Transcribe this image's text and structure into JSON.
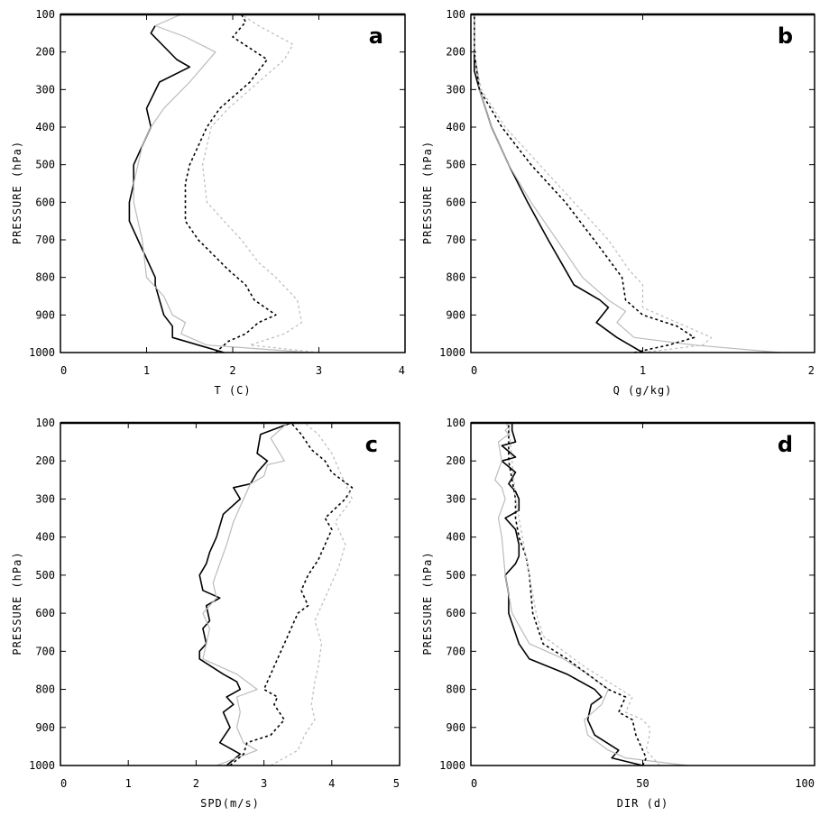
{
  "chart_data": [
    {
      "type": "line",
      "panel_label": "a",
      "xlabel": "T (C)",
      "ylabel": "PRESSURE (hPa)",
      "xlim": [
        0,
        4
      ],
      "ylim": [
        1000,
        100
      ],
      "x_ticks": [
        "0",
        "1",
        "2",
        "3",
        "4"
      ],
      "y_ticks": [
        "100",
        "200",
        "300",
        "400",
        "500",
        "600",
        "700",
        "800",
        "900",
        "1000"
      ],
      "series": [
        {
          "color": "#000000",
          "dash": "solid",
          "width": 1.6,
          "x": [
            1.9,
            1.6,
            1.3,
            1.3,
            1.2,
            1.15,
            1.1,
            1.1,
            0.9,
            0.8,
            0.8,
            0.85,
            0.85,
            0.95,
            1.05,
            1.0,
            1.15,
            1.5,
            1.35,
            1.05,
            1.1
          ],
          "y": [
            1000,
            980,
            960,
            930,
            900,
            860,
            820,
            800,
            700,
            650,
            600,
            550,
            500,
            450,
            400,
            350,
            280,
            240,
            220,
            150,
            130
          ]
        },
        {
          "color": "#bbbbbb",
          "dash": "solid",
          "width": 1.2,
          "x": [
            2.9,
            1.7,
            1.4,
            1.45,
            1.3,
            1.2,
            1.0,
            0.95,
            0.85,
            0.85,
            0.9,
            0.95,
            1.05,
            1.2,
            1.5,
            1.8,
            1.45,
            1.1,
            1.4
          ],
          "y": [
            1000,
            980,
            950,
            920,
            900,
            850,
            800,
            700,
            600,
            550,
            500,
            450,
            400,
            350,
            280,
            200,
            160,
            130,
            100
          ]
        },
        {
          "color": "#000000",
          "dash": "dotted",
          "width": 1.6,
          "x": [
            1.8,
            1.95,
            2.15,
            2.3,
            2.5,
            2.25,
            2.15,
            1.95,
            1.6,
            1.45,
            1.45,
            1.45,
            1.5,
            1.7,
            1.85,
            2.2,
            2.4,
            2.0,
            2.15,
            2.1
          ],
          "y": [
            1000,
            970,
            950,
            920,
            900,
            860,
            820,
            780,
            700,
            650,
            600,
            550,
            500,
            400,
            350,
            280,
            220,
            160,
            120,
            100
          ]
        },
        {
          "color": "#bbbbbb",
          "dash": "dotted",
          "width": 1.2,
          "x": [
            3.0,
            2.2,
            2.6,
            2.8,
            2.75,
            2.5,
            2.3,
            2.1,
            1.9,
            1.7,
            1.65,
            1.75,
            1.95,
            2.2,
            2.6,
            2.7,
            2.3,
            2.1
          ],
          "y": [
            1000,
            980,
            950,
            920,
            860,
            800,
            760,
            700,
            650,
            600,
            500,
            400,
            350,
            300,
            220,
            180,
            130,
            100
          ]
        }
      ]
    },
    {
      "type": "line",
      "panel_label": "b",
      "xlabel": "Q (g/kg)",
      "ylabel": "PRESSURE (hPa)",
      "xlim": [
        0,
        2
      ],
      "ylim": [
        1000,
        100
      ],
      "x_ticks": [
        "0",
        "1",
        "2"
      ],
      "y_ticks": [
        "100",
        "200",
        "300",
        "400",
        "500",
        "600",
        "700",
        "800",
        "900",
        "1000"
      ],
      "series": [
        {
          "color": "#000000",
          "dash": "solid",
          "width": 1.6,
          "x": [
            1.0,
            0.85,
            0.73,
            0.8,
            0.75,
            0.6,
            0.55,
            0.45,
            0.33,
            0.22,
            0.12,
            0.05,
            0.02,
            0.02,
            0.02
          ],
          "y": [
            1000,
            960,
            920,
            880,
            860,
            820,
            780,
            700,
            600,
            500,
            400,
            300,
            250,
            150,
            100
          ]
        },
        {
          "color": "#bbbbbb",
          "dash": "solid",
          "width": 1.2,
          "x": [
            1.8,
            1.3,
            0.95,
            0.85,
            0.9,
            0.8,
            0.65,
            0.5,
            0.35,
            0.22,
            0.12,
            0.05,
            0.02,
            0.02
          ],
          "y": [
            1000,
            980,
            960,
            920,
            890,
            860,
            800,
            700,
            600,
            500,
            400,
            300,
            200,
            100
          ]
        },
        {
          "color": "#000000",
          "dash": "dotted",
          "width": 1.6,
          "x": [
            0.95,
            1.15,
            1.3,
            1.2,
            1.0,
            0.9,
            0.88,
            0.75,
            0.55,
            0.35,
            0.18,
            0.05,
            0.02,
            0.02
          ],
          "y": [
            1000,
            980,
            960,
            930,
            900,
            860,
            800,
            720,
            600,
            500,
            400,
            300,
            200,
            100
          ]
        },
        {
          "color": "#bbbbbb",
          "dash": "dotted",
          "width": 1.2,
          "x": [
            1.0,
            1.35,
            1.4,
            1.2,
            1.0,
            1.0,
            0.92,
            0.8,
            0.6,
            0.4,
            0.2,
            0.06,
            0.02,
            0.02
          ],
          "y": [
            1000,
            980,
            960,
            920,
            880,
            820,
            780,
            700,
            600,
            500,
            400,
            300,
            200,
            100
          ]
        }
      ]
    },
    {
      "type": "line",
      "panel_label": "c",
      "xlabel": "SPD(m/s)",
      "ylabel": "PRESSURE (hPa)",
      "xlim": [
        0,
        5
      ],
      "ylim": [
        1000,
        100
      ],
      "x_ticks": [
        "0",
        "1",
        "2",
        "3",
        "4",
        "5"
      ],
      "y_ticks": [
        "100",
        "200",
        "300",
        "400",
        "500",
        "600",
        "700",
        "800",
        "900",
        "1000"
      ],
      "series": [
        {
          "color": "#000000",
          "dash": "solid",
          "width": 1.6,
          "x": [
            2.45,
            2.65,
            2.35,
            2.5,
            2.4,
            2.55,
            2.45,
            2.65,
            2.6,
            2.4,
            2.05,
            2.05,
            2.15,
            2.1,
            2.2,
            2.15,
            2.35,
            2.1,
            2.05,
            2.15,
            2.2,
            2.3,
            2.4,
            2.65,
            2.55,
            2.8,
            2.9,
            3.05,
            2.9,
            2.95,
            3.4
          ],
          "y": [
            1000,
            970,
            940,
            900,
            860,
            840,
            820,
            800,
            780,
            760,
            720,
            700,
            680,
            640,
            620,
            580,
            560,
            540,
            500,
            470,
            440,
            400,
            340,
            300,
            270,
            260,
            230,
            200,
            180,
            130,
            100
          ]
        },
        {
          "color": "#bbbbbb",
          "dash": "solid",
          "width": 1.2,
          "x": [
            2.3,
            2.9,
            2.7,
            2.6,
            2.65,
            2.6,
            2.9,
            2.6,
            2.1,
            2.15,
            2.2,
            2.1,
            2.3,
            2.25,
            2.45,
            2.55,
            2.7,
            2.8,
            3.0,
            3.05,
            3.3,
            3.1,
            3.35
          ],
          "y": [
            1000,
            960,
            940,
            900,
            860,
            820,
            800,
            760,
            720,
            680,
            640,
            600,
            560,
            520,
            420,
            360,
            300,
            260,
            240,
            210,
            200,
            140,
            100
          ]
        },
        {
          "color": "#000000",
          "dash": "dotted",
          "width": 1.6,
          "x": [
            2.5,
            2.7,
            2.75,
            3.1,
            3.3,
            3.15,
            3.2,
            3.0,
            3.05,
            3.2,
            3.3,
            3.4,
            3.5,
            3.65,
            3.55,
            3.65,
            3.8,
            3.9,
            4.0,
            3.9,
            4.2,
            4.3,
            4.0,
            3.9,
            3.7,
            3.55,
            3.4
          ],
          "y": [
            1000,
            970,
            940,
            920,
            880,
            840,
            820,
            800,
            780,
            720,
            680,
            640,
            600,
            580,
            540,
            500,
            460,
            420,
            380,
            350,
            300,
            270,
            230,
            200,
            170,
            130,
            100
          ]
        },
        {
          "color": "#bbbbbb",
          "dash": "dotted",
          "width": 1.2,
          "x": [
            3.1,
            3.5,
            3.6,
            3.75,
            3.7,
            3.75,
            3.8,
            3.85,
            3.75,
            3.9,
            4.1,
            4.2,
            4.05,
            4.3,
            4.1,
            4.0,
            3.8,
            3.6
          ],
          "y": [
            1000,
            960,
            920,
            880,
            840,
            780,
            740,
            680,
            620,
            560,
            480,
            420,
            360,
            300,
            220,
            180,
            130,
            100
          ]
        }
      ]
    },
    {
      "type": "line",
      "panel_label": "d",
      "xlabel": "DIR (d)",
      "ylabel": "PRESSURE (hPa)",
      "xlim": [
        0,
        100
      ],
      "ylim": [
        1000,
        100
      ],
      "x_ticks": [
        "0",
        "50",
        "100"
      ],
      "y_ticks": [
        "100",
        "200",
        "300",
        "400",
        "500",
        "600",
        "700",
        "800",
        "900",
        "1000"
      ],
      "series": [
        {
          "color": "#000000",
          "dash": "solid",
          "width": 1.6,
          "x": [
            50,
            41,
            43,
            36,
            34,
            35,
            38,
            36,
            28,
            17,
            14,
            11,
            11,
            10,
            13,
            14,
            14,
            13,
            10,
            14,
            14,
            13,
            11,
            13,
            9,
            13,
            9,
            13,
            12,
            12
          ],
          "y": [
            1000,
            980,
            960,
            920,
            880,
            840,
            820,
            800,
            760,
            720,
            680,
            600,
            550,
            500,
            470,
            450,
            420,
            380,
            350,
            330,
            300,
            280,
            260,
            230,
            200,
            190,
            160,
            150,
            120,
            100
          ]
        },
        {
          "color": "#bbbbbb",
          "dash": "solid",
          "width": 1.2,
          "x": [
            63,
            45,
            40,
            34,
            33,
            38,
            40,
            34,
            27,
            17,
            12,
            10,
            9,
            8,
            10,
            9,
            7,
            9,
            8,
            11,
            10,
            11,
            10
          ],
          "y": [
            1000,
            980,
            960,
            920,
            880,
            840,
            800,
            760,
            720,
            680,
            600,
            500,
            400,
            350,
            300,
            270,
            250,
            200,
            150,
            130,
            120,
            110,
            100
          ]
        },
        {
          "color": "#000000",
          "dash": "dotted",
          "width": 1.6,
          "x": [
            50,
            51,
            50,
            48,
            47,
            43,
            45,
            40,
            34,
            28,
            21,
            18,
            17,
            16,
            14,
            13,
            13,
            12,
            11,
            11
          ],
          "y": [
            1000,
            980,
            960,
            920,
            880,
            860,
            820,
            800,
            760,
            720,
            680,
            600,
            500,
            450,
            400,
            350,
            300,
            250,
            200,
            100
          ]
        },
        {
          "color": "#bbbbbb",
          "dash": "dotted",
          "width": 1.2,
          "x": [
            55,
            51,
            52,
            52,
            50,
            45,
            47,
            40,
            33,
            27,
            21,
            19,
            17,
            15,
            14,
            13,
            12,
            11
          ],
          "y": [
            1000,
            960,
            920,
            900,
            880,
            860,
            820,
            780,
            740,
            700,
            660,
            600,
            500,
            400,
            350,
            300,
            200,
            100
          ]
        }
      ]
    }
  ]
}
